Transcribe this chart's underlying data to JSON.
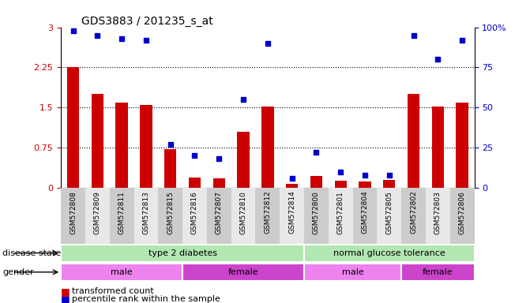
{
  "title": "GDS3883 / 201235_s_at",
  "samples": [
    "GSM572808",
    "GSM572809",
    "GSM572811",
    "GSM572813",
    "GSM572815",
    "GSM572816",
    "GSM572807",
    "GSM572810",
    "GSM572812",
    "GSM572814",
    "GSM572800",
    "GSM572801",
    "GSM572804",
    "GSM572805",
    "GSM572802",
    "GSM572803",
    "GSM572806"
  ],
  "bar_values": [
    2.25,
    1.75,
    1.6,
    1.55,
    0.72,
    0.2,
    0.18,
    1.05,
    1.52,
    0.08,
    0.22,
    0.14,
    0.12,
    0.15,
    1.75,
    1.52,
    1.6
  ],
  "dot_values": [
    98,
    95,
    93,
    92,
    27,
    20,
    18,
    55,
    90,
    6,
    22,
    10,
    8,
    8,
    95,
    80,
    92
  ],
  "bar_color": "#cc0000",
  "dot_color": "#0000cc",
  "ylim_left": [
    0,
    3
  ],
  "ylim_right": [
    0,
    100
  ],
  "yticks_left": [
    0,
    0.75,
    1.5,
    2.25,
    3
  ],
  "yticks_right": [
    0,
    25,
    50,
    75,
    100
  ],
  "ytick_labels_left": [
    "0",
    "0.75",
    "1.5",
    "2.25",
    "3"
  ],
  "ytick_labels_right": [
    "0",
    "25",
    "50",
    "75",
    "100%"
  ],
  "hlines": [
    0.75,
    1.5,
    2.25
  ],
  "disease_groups": [
    {
      "label": "type 2 diabetes",
      "start": 0,
      "end": 10,
      "color": "#b2e6b2"
    },
    {
      "label": "normal glucose tolerance",
      "start": 10,
      "end": 17,
      "color": "#b2e6b2"
    }
  ],
  "gender_groups": [
    {
      "label": "male",
      "start": 0,
      "end": 5,
      "color": "#ee82ee"
    },
    {
      "label": "female",
      "start": 5,
      "end": 10,
      "color": "#cc44cc"
    },
    {
      "label": "male",
      "start": 10,
      "end": 14,
      "color": "#ee82ee"
    },
    {
      "label": "female",
      "start": 14,
      "end": 17,
      "color": "#cc44cc"
    }
  ],
  "disease_label": "disease state",
  "gender_label": "gender",
  "legend_bar_label": "transformed count",
  "legend_dot_label": "percentile rank within the sample",
  "background_color": "#ffffff",
  "tick_label_color_left": "#cc0000",
  "tick_label_color_right": "#0000cc",
  "col_bg_even": "#cccccc",
  "col_bg_odd": "#e8e8e8"
}
